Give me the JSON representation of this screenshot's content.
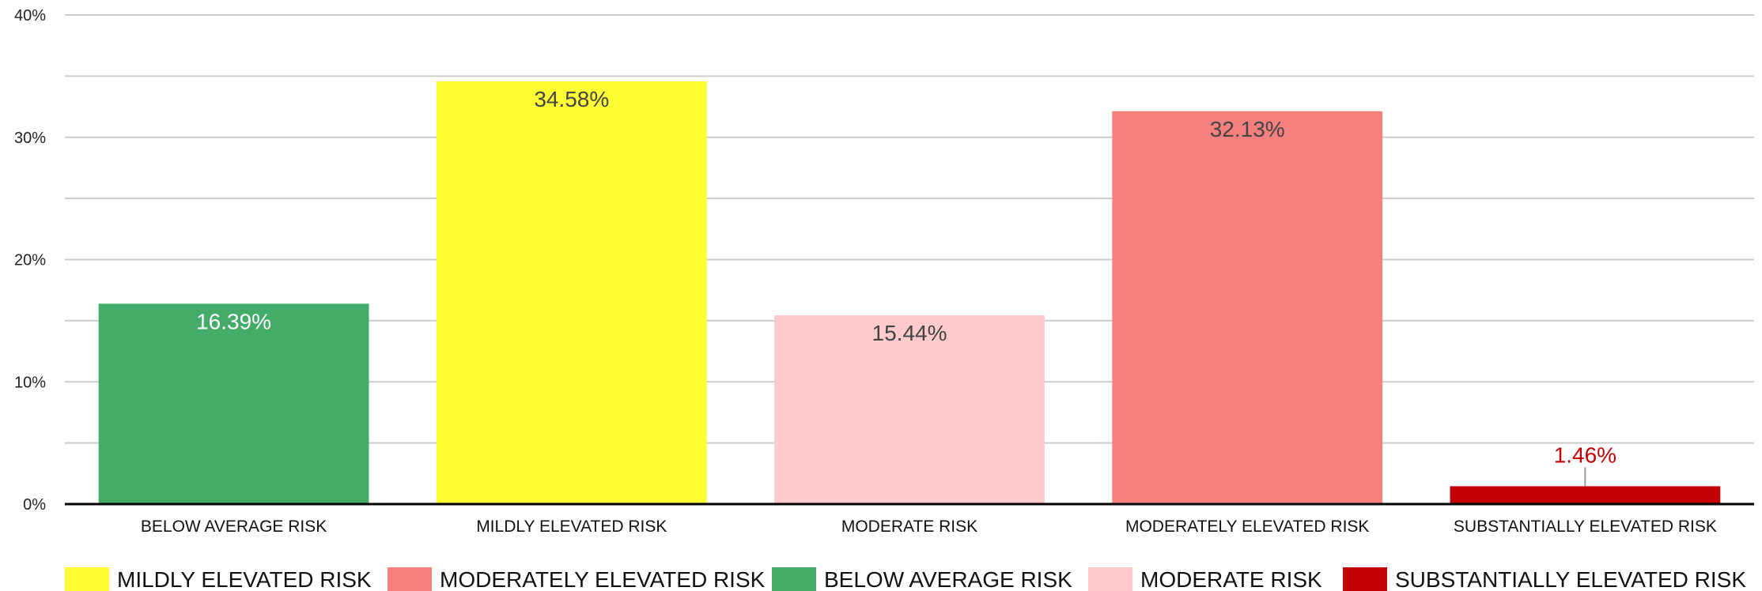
{
  "chart_data": {
    "type": "bar",
    "categories": [
      "BELOW AVERAGE RISK",
      "MILDLY ELEVATED RISK",
      "MODERATE RISK",
      "MODERATELY ELEVATED RISK",
      "SUBSTANTIALLY ELEVATED RISK"
    ],
    "values": [
      16.39,
      34.58,
      15.44,
      32.13,
      1.46
    ],
    "data_labels": [
      "16.39%",
      "34.58%",
      "15.44%",
      "32.13%",
      "1.46%"
    ],
    "colors": [
      "#45ab68",
      "#ffff33",
      "#fdcbcb",
      "#f6807e",
      "#c10003"
    ],
    "label_colors": [
      "#ffffff",
      "#444444",
      "#444444",
      "#444444",
      "#c10003"
    ],
    "ylim": [
      0,
      40
    ],
    "yticks": [
      0,
      10,
      20,
      30,
      40
    ],
    "ytick_labels": [
      "0%",
      "10%",
      "20%",
      "30%",
      "40%"
    ],
    "minor_grid": true,
    "legend_position": "bottom",
    "legend": [
      {
        "label": "MILDLY ELEVATED RISK",
        "color": "#ffff33"
      },
      {
        "label": "MODERATELY ELEVATED RISK",
        "color": "#f6807e"
      },
      {
        "label": "BELOW AVERAGE RISK",
        "color": "#45ab68"
      },
      {
        "label": "MODERATE RISK",
        "color": "#fdcbcb"
      },
      {
        "label": "SUBSTANTIALLY ELEVATED RISK",
        "color": "#c10003"
      }
    ]
  }
}
